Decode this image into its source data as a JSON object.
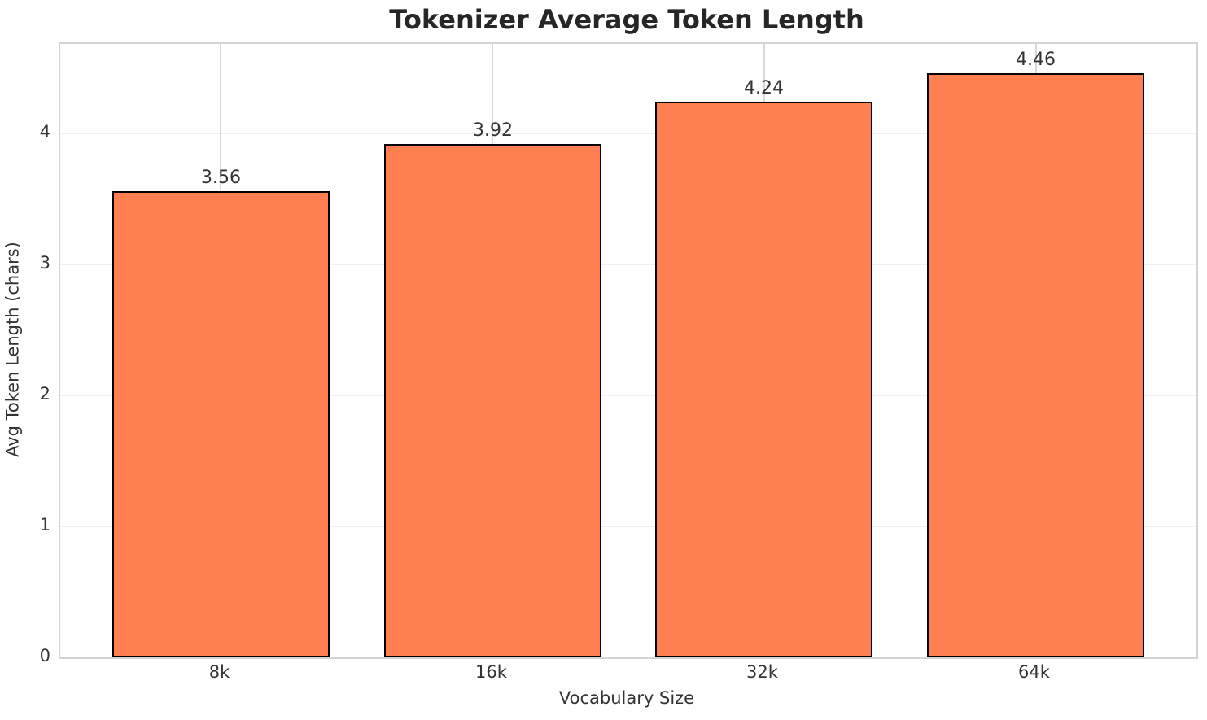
{
  "chart_data": {
    "type": "bar",
    "title": "Tokenizer Average Token Length",
    "xlabel": "Vocabulary Size",
    "ylabel": "Avg Token Length (chars)",
    "categories": [
      "8k",
      "16k",
      "32k",
      "64k"
    ],
    "values": [
      3.56,
      3.92,
      4.24,
      4.46
    ],
    "value_labels": [
      "3.56",
      "3.92",
      "4.24",
      "4.46"
    ],
    "yticks": [
      0,
      1,
      2,
      3,
      4
    ],
    "ylim": [
      0,
      4.683
    ],
    "grid": true,
    "legend": "none",
    "bar_color": "#FF7F50",
    "bar_edge_color": "#000000",
    "grid_color_horizontal": "#f0f0f0",
    "grid_color_vertical": "#d9d9d9",
    "spine_color": "#d4d4d4",
    "text_color": "#333333",
    "title_color": "#262626"
  }
}
